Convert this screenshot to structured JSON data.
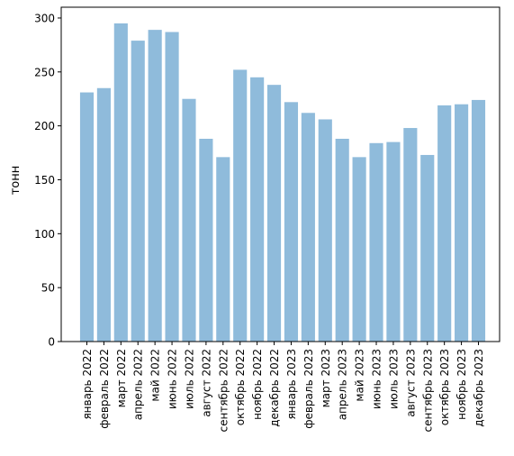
{
  "chart_data": {
    "type": "bar",
    "title": "",
    "xlabel": "",
    "ylabel": "тонн",
    "ylim": [
      0,
      310
    ],
    "yticks": [
      0,
      50,
      100,
      150,
      200,
      250,
      300
    ],
    "grid": false,
    "bar_color": "#8fbbdb",
    "categories": [
      "январь 2022",
      "февраль 2022",
      "март 2022",
      "апрель 2022",
      "май 2022",
      "июнь 2022",
      "июль 2022",
      "август 2022",
      "сентябрь 2022",
      "октябрь 2022",
      "ноябрь 2022",
      "декабрь 2022",
      "январь 2023",
      "февраль 2023",
      "март 2023",
      "апрель 2023",
      "май 2023",
      "июнь 2023",
      "июль 2023",
      "август 2023",
      "сентябрь 2023",
      "октябрь 2023",
      "ноябрь 2023",
      "декабрь 2023"
    ],
    "values": [
      231,
      235,
      295,
      279,
      289,
      287,
      225,
      188,
      171,
      252,
      245,
      238,
      222,
      212,
      206,
      188,
      171,
      184,
      185,
      198,
      173,
      219,
      220,
      224
    ]
  }
}
